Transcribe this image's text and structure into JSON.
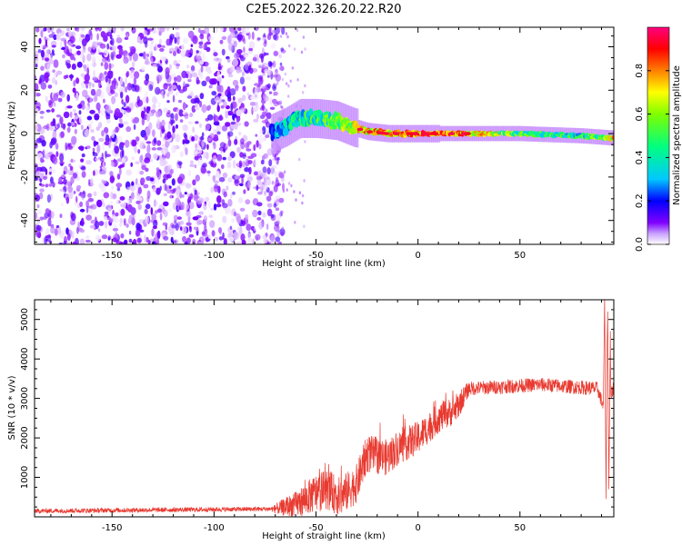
{
  "figure": {
    "title": "C2E5.2022.326.20.22.R20"
  },
  "colors": {
    "snr_line": "#e83a30",
    "axis": "#000000"
  },
  "chart_data": [
    {
      "type": "heatmap",
      "xlabel": "Height of straight line (km)",
      "ylabel": "Frequency (Hz)",
      "xlim": [
        -188,
        96
      ],
      "ylim": [
        -51,
        49
      ],
      "x_ticks": [
        "-150",
        "-100",
        "-50",
        "0",
        "50"
      ],
      "x_tick_values": [
        -150,
        -100,
        -50,
        0,
        50
      ],
      "y_ticks": [
        "40",
        "20",
        "0",
        "-20",
        "-40"
      ],
      "y_tick_values": [
        40,
        20,
        0,
        -20,
        -40
      ],
      "colormap": [
        "#ffffff",
        "#8000ff",
        "#0000ff",
        "#00c8ff",
        "#00ff80",
        "#80ff00",
        "#ffff00",
        "#ff8000",
        "#ff0000",
        "#ff0080"
      ],
      "colorbar": {
        "label": "Normalized spectral amplitude",
        "range": [
          0,
          1
        ],
        "ticks": [
          "0.0",
          "0.2",
          "0.4",
          "0.6",
          "0.8"
        ],
        "tick_values": [
          0.0,
          0.2,
          0.4,
          0.6,
          0.8
        ]
      },
      "features": {
        "noise_region_x": [
          -188,
          -72
        ],
        "signal_ridge": [
          {
            "x": -72,
            "freq": 0,
            "amp": 0.3
          },
          {
            "x": -65,
            "freq": 3,
            "amp": 0.45
          },
          {
            "x": -58,
            "freq": 7,
            "amp": 0.5
          },
          {
            "x": -50,
            "freq": 7,
            "amp": 0.55
          },
          {
            "x": -40,
            "freq": 6,
            "amp": 0.6
          },
          {
            "x": -32,
            "freq": 3,
            "amp": 0.75
          },
          {
            "x": -25,
            "freq": 1,
            "amp": 0.85
          },
          {
            "x": -15,
            "freq": 0,
            "amp": 0.9
          },
          {
            "x": 0,
            "freq": 0,
            "amp": 0.95
          },
          {
            "x": 25,
            "freq": 0,
            "amp": 0.9
          },
          {
            "x": 50,
            "freq": 0,
            "amp": 0.6
          },
          {
            "x": 80,
            "freq": -1,
            "amp": 0.5
          },
          {
            "x": 95,
            "freq": -2,
            "amp": 0.8
          }
        ]
      }
    },
    {
      "type": "line",
      "xlabel": "Height of straight line (km)",
      "ylabel": "SNR (10 * v/v)",
      "xlim": [
        -188,
        96
      ],
      "ylim": [
        0,
        5500
      ],
      "x_ticks": [
        "-150",
        "-100",
        "-50",
        "0",
        "50"
      ],
      "x_tick_values": [
        -150,
        -100,
        -50,
        0,
        50
      ],
      "y_ticks": [
        "1000",
        "2000",
        "3000",
        "4000",
        "5000"
      ],
      "y_tick_values": [
        1000,
        2000,
        3000,
        4000,
        5000
      ],
      "series": [
        {
          "envelope": [
            {
              "x": -188,
              "y": 150
            },
            {
              "x": -70,
              "y": 200
            },
            {
              "x": -60,
              "y": 300
            },
            {
              "x": -52,
              "y": 550
            },
            {
              "x": -45,
              "y": 700
            },
            {
              "x": -38,
              "y": 500
            },
            {
              "x": -30,
              "y": 850
            },
            {
              "x": -25,
              "y": 1600
            },
            {
              "x": -15,
              "y": 1500
            },
            {
              "x": -10,
              "y": 1750
            },
            {
              "x": 0,
              "y": 2000
            },
            {
              "x": 10,
              "y": 2500
            },
            {
              "x": 18,
              "y": 2700
            },
            {
              "x": 25,
              "y": 3250
            },
            {
              "x": 60,
              "y": 3350
            },
            {
              "x": 88,
              "y": 3250
            },
            {
              "x": 92,
              "y": 2600
            },
            {
              "x": 96,
              "y": 3300
            }
          ],
          "noise_amp": [
            {
              "x": -188,
              "y": 60
            },
            {
              "x": -72,
              "y": 60
            },
            {
              "x": -65,
              "y": 250
            },
            {
              "x": -50,
              "y": 500
            },
            {
              "x": -30,
              "y": 500
            },
            {
              "x": 0,
              "y": 420
            },
            {
              "x": 20,
              "y": 350
            },
            {
              "x": 25,
              "y": 180
            },
            {
              "x": 85,
              "y": 180
            },
            {
              "x": 96,
              "y": 180
            }
          ],
          "spikes": [
            {
              "x": 91.5,
              "y": 5600
            },
            {
              "x": 92.2,
              "y": 450
            },
            {
              "x": 93.0,
              "y": 5200
            },
            {
              "x": 93.6,
              "y": 700
            },
            {
              "x": 94.3,
              "y": 4700
            },
            {
              "x": 92.6,
              "y": 4000
            }
          ]
        }
      ]
    }
  ]
}
